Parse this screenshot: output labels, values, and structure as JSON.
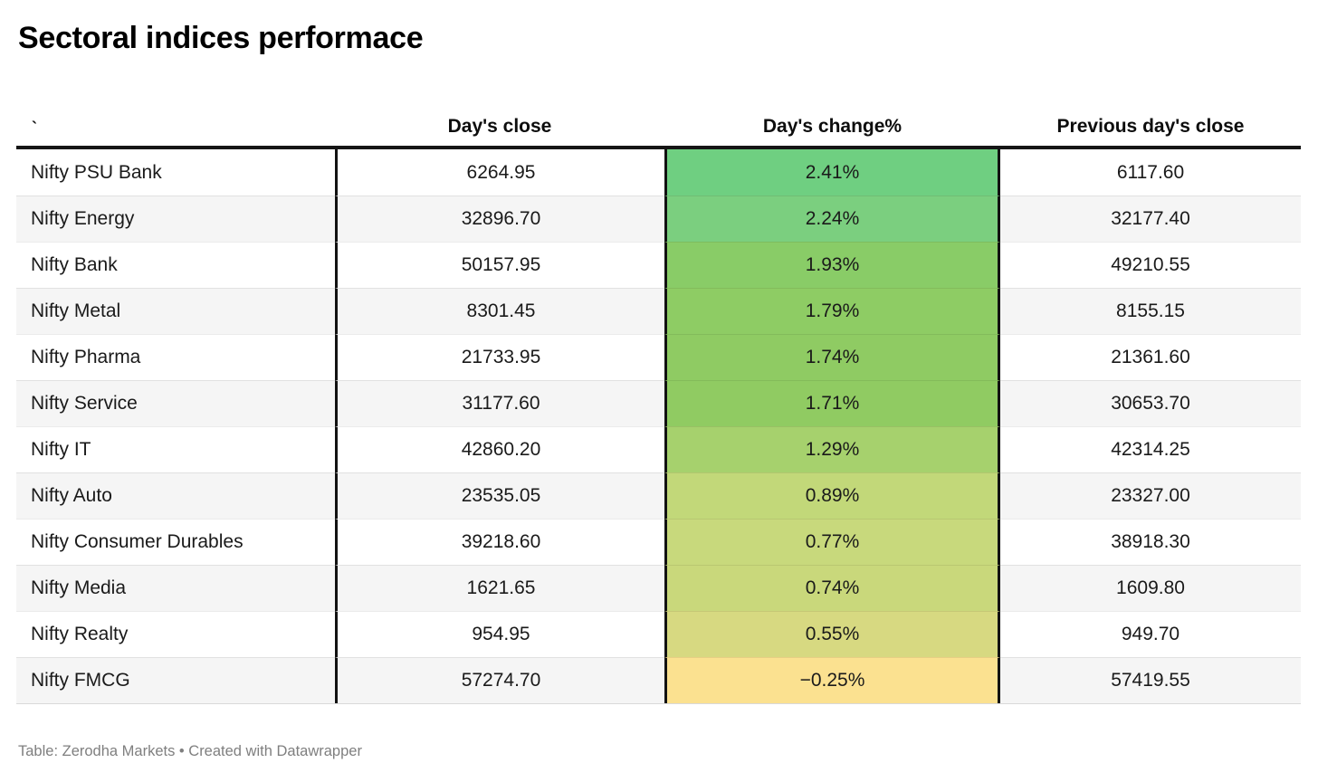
{
  "title": "Sectoral indices performace",
  "table": {
    "columns": [
      {
        "label": "`"
      },
      {
        "label": "Day's close"
      },
      {
        "label": "Day's change%"
      },
      {
        "label": "Previous day's close"
      }
    ],
    "rows": [
      {
        "name": "Nifty PSU Bank",
        "day_close": "6264.95",
        "day_change": "2.41%",
        "prev_close": "6117.60",
        "change_color": "#6fcf81"
      },
      {
        "name": "Nifty Energy",
        "day_close": "32896.70",
        "day_change": "2.24%",
        "prev_close": "32177.40",
        "change_color": "#7bcf7f"
      },
      {
        "name": "Nifty Bank",
        "day_close": "50157.95",
        "day_change": "1.93%",
        "prev_close": "49210.55",
        "change_color": "#89cc67"
      },
      {
        "name": "Nifty Metal",
        "day_close": "8301.45",
        "day_change": "1.79%",
        "prev_close": "8155.15",
        "change_color": "#8ecc64"
      },
      {
        "name": "Nifty Pharma",
        "day_close": "21733.95",
        "day_change": "1.74%",
        "prev_close": "21361.60",
        "change_color": "#8fcb63"
      },
      {
        "name": "Nifty Service",
        "day_close": "31177.60",
        "day_change": "1.71%",
        "prev_close": "30653.70",
        "change_color": "#90cb62"
      },
      {
        "name": "Nifty IT",
        "day_close": "42860.20",
        "day_change": "1.29%",
        "prev_close": "42314.25",
        "change_color": "#a6d16d"
      },
      {
        "name": "Nifty Auto",
        "day_close": "23535.05",
        "day_change": "0.89%",
        "prev_close": "23327.00",
        "change_color": "#c2d879"
      },
      {
        "name": "Nifty Consumer Durables",
        "day_close": "39218.60",
        "day_change": "0.77%",
        "prev_close": "38918.30",
        "change_color": "#c8d97c"
      },
      {
        "name": "Nifty Media",
        "day_close": "1621.65",
        "day_change": "0.74%",
        "prev_close": "1609.80",
        "change_color": "#c9d87b"
      },
      {
        "name": "Nifty Realty",
        "day_close": "954.95",
        "day_change": "0.55%",
        "prev_close": "949.70",
        "change_color": "#d7d981"
      },
      {
        "name": "Nifty FMCG",
        "day_close": "57274.70",
        "day_change": "−0.25%",
        "prev_close": "57419.55",
        "change_color": "#fbe190"
      }
    ]
  },
  "footer": {
    "credit": "Table: Zerodha Markets • Created with Datawrapper"
  },
  "colors": {
    "header_border": "#151515",
    "stripe_row": "#f5f5f5",
    "footer_text": "#7f7f7f",
    "positive_high": "#6fcf81",
    "positive_low": "#d7d981",
    "negative": "#fbe190"
  },
  "chart_data": {
    "type": "table",
    "title": "Sectoral indices performace",
    "columns": [
      "",
      "Day's close",
      "Day's change%",
      "Previous day's close"
    ],
    "rows": [
      [
        "Nifty PSU Bank",
        6264.95,
        2.41,
        6117.6
      ],
      [
        "Nifty Energy",
        32896.7,
        2.24,
        32177.4
      ],
      [
        "Nifty Bank",
        50157.95,
        1.93,
        49210.55
      ],
      [
        "Nifty Metal",
        8301.45,
        1.79,
        8155.15
      ],
      [
        "Nifty Pharma",
        21733.95,
        1.74,
        21361.6
      ],
      [
        "Nifty Service",
        31177.6,
        1.71,
        30653.7
      ],
      [
        "Nifty IT",
        42860.2,
        1.29,
        42314.25
      ],
      [
        "Nifty Auto",
        23535.05,
        0.89,
        23327.0
      ],
      [
        "Nifty Consumer Durables",
        39218.6,
        0.77,
        38918.3
      ],
      [
        "Nifty Media",
        1621.65,
        0.74,
        1609.8
      ],
      [
        "Nifty Realty",
        954.95,
        0.55,
        949.7
      ],
      [
        "Nifty FMCG",
        57274.7,
        -0.25,
        57419.55
      ]
    ],
    "notes": "Day's change% column uses a green-to-yellow heat scale; source credit: Table: Zerodha Markets, Created with Datawrapper"
  }
}
